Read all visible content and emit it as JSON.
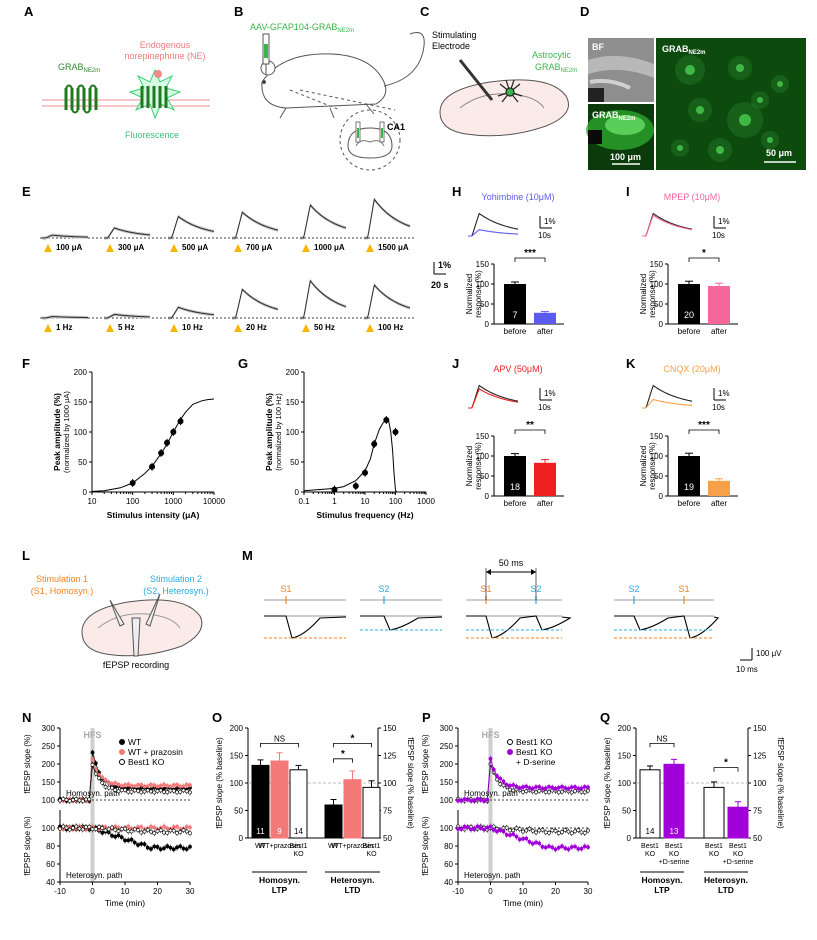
{
  "panel_labels": [
    "A",
    "B",
    "C",
    "D",
    "E",
    "F",
    "G",
    "H",
    "I",
    "J",
    "K",
    "L",
    "M",
    "N",
    "O",
    "P",
    "Q"
  ],
  "panelA": {
    "receptor_label": "GRAB",
    "receptor_sub": "NE2m",
    "ligand_label_1": "Endogenous",
    "ligand_label_2": "norepinephrine (NE)",
    "fluor_label": "Fluorescence"
  },
  "panelB": {
    "virus_label": "AAV-GFAP104-GRAB",
    "virus_sub": "NE2m",
    "region": "CA1"
  },
  "panelC": {
    "electrode_1": "Stimulating",
    "electrode_2": "Electrode",
    "astro_1": "Astrocytic",
    "astro_2": "GRAB",
    "astro_sub": "NE2m"
  },
  "panelD": {
    "bf": "BF",
    "grab": "GRAB",
    "grab_sub": "NE2m",
    "scale_left": "100 μm",
    "scale_right": "50 μm"
  },
  "panelE": {
    "intensity_labels": [
      "100 μA",
      "300 μA",
      "500 μA",
      "700 μA",
      "1000 μA",
      "1500 μA"
    ],
    "frequency_labels": [
      "1 Hz",
      "5 Hz",
      "10 Hz",
      "20 Hz",
      "50 Hz",
      "100 Hz"
    ],
    "intensity_peaks": [
      0.2,
      0.7,
      1.5,
      1.8,
      2.3,
      2.7
    ],
    "frequency_peaks": [
      0.1,
      0.25,
      0.75,
      2.0,
      2.6,
      2.3
    ],
    "scale_y": "1%",
    "scale_x": "20 s"
  },
  "chart_data": [
    {
      "panel": "F",
      "type": "line",
      "xscale": "log",
      "xlabel": "Stimulus intensity (μA)",
      "ylabel": "Peak amplitude (%)",
      "ylabel2": "(normalized by 1000 μA)",
      "xlim": [
        10,
        10000
      ],
      "ylim": [
        0,
        200
      ],
      "x_ticks": [
        "10",
        "100",
        "1000",
        "10000"
      ],
      "y_ticks": [
        "0",
        "50",
        "100",
        "150",
        "200"
      ],
      "points": {
        "x": [
          100,
          300,
          500,
          700,
          1000,
          1500
        ],
        "y": [
          15,
          42,
          65,
          82,
          100,
          118
        ]
      },
      "fit": {
        "x": [
          10,
          20,
          50,
          100,
          200,
          300,
          500,
          700,
          1000,
          1500,
          2000,
          3000,
          5000,
          7000,
          10000
        ],
        "y": [
          1,
          2,
          7,
          15,
          31,
          43,
          64,
          80,
          100,
          121,
          133,
          146,
          152,
          154,
          155
        ]
      }
    },
    {
      "panel": "G",
      "type": "line",
      "xscale": "log",
      "xlabel": "Stimulus frequency (Hz)",
      "ylabel": "Peak amplitude (%)",
      "ylabel2": "(normalized by 100 Hz)",
      "xlim": [
        0.1,
        1000
      ],
      "ylim": [
        0,
        200
      ],
      "x_ticks": [
        "0.1",
        "1",
        "10",
        "100",
        "1000"
      ],
      "y_ticks": [
        "0",
        "50",
        "100",
        "150",
        "200"
      ],
      "points": {
        "x": [
          1,
          5,
          10,
          20,
          50,
          100
        ],
        "y": [
          4,
          10,
          32,
          80,
          120,
          100
        ]
      },
      "fit": {
        "x": [
          0.1,
          0.3,
          1,
          2,
          5,
          10,
          15,
          20,
          30,
          40,
          50,
          60,
          70,
          80,
          90,
          100,
          110
        ],
        "y": [
          2,
          4,
          6,
          9,
          19,
          35,
          55,
          80,
          105,
          116,
          120,
          118,
          100,
          70,
          30,
          3,
          0
        ]
      }
    },
    {
      "panel": "H",
      "type": "bar",
      "drug": "Yohimbine (10μM)",
      "drug_color": "#5b5bef",
      "categories": [
        "before",
        "after"
      ],
      "values": [
        100,
        28
      ],
      "errors": [
        5,
        3
      ],
      "n": "7",
      "sig": "***",
      "ylabel": "Normalized response (%)",
      "ylim": [
        0,
        150
      ],
      "y_ticks": [
        "0",
        "50",
        "100",
        "150"
      ],
      "scale_y": "1%",
      "scale_x": "10s",
      "trace_ratio": 0.28
    },
    {
      "panel": "I",
      "type": "bar",
      "drug": "MPEP (10μM)",
      "drug_color": "#f5679a",
      "categories": [
        "before",
        "after"
      ],
      "values": [
        100,
        95
      ],
      "errors": [
        7,
        7
      ],
      "n": "20",
      "sig": "*",
      "ylabel": "Normalized response (%)",
      "ylim": [
        0,
        150
      ],
      "y_ticks": [
        "0",
        "50",
        "100",
        "150"
      ],
      "scale_y": "1%",
      "scale_x": "10s",
      "trace_ratio": 0.92
    },
    {
      "panel": "J",
      "type": "bar",
      "drug": "APV (50μM)",
      "drug_color": "#f02020",
      "categories": [
        "before",
        "after"
      ],
      "values": [
        100,
        83
      ],
      "errors": [
        6,
        8
      ],
      "n": "18",
      "sig": "**",
      "ylabel": "Normalized response (%)",
      "ylim": [
        0,
        150
      ],
      "y_ticks": [
        "0",
        "50",
        "100",
        "150"
      ],
      "scale_y": "1%",
      "scale_x": "10s",
      "trace_ratio": 0.85
    },
    {
      "panel": "K",
      "type": "bar",
      "drug": "CNQX (20μM)",
      "drug_color": "#f7a04a",
      "categories": [
        "before",
        "after"
      ],
      "values": [
        100,
        38
      ],
      "errors": [
        7,
        5
      ],
      "n": "19",
      "sig": "***",
      "ylabel": "Normalized response (%)",
      "ylim": [
        0,
        150
      ],
      "y_ticks": [
        "0",
        "50",
        "100",
        "150"
      ],
      "scale_y": "1%",
      "scale_x": "10s",
      "trace_ratio": 0.38
    },
    {
      "panel": "O",
      "type": "bar",
      "ylabel_left": "fEPSP slope (% baseline)",
      "ylabel_right": "fEPSP slope (% baseline)",
      "ylim_left": [
        0,
        200
      ],
      "ylim_right": [
        50,
        150
      ],
      "y_ticks_left": [
        "0",
        "50",
        "100",
        "150",
        "200"
      ],
      "y_ticks_right": [
        "50",
        "75",
        "100",
        "125",
        "150"
      ],
      "group_labels": [
        "Homosyn.",
        "LTP",
        "Heterosyn.",
        "LTD"
      ],
      "categories": [
        "WT",
        "WT+prazosin",
        "Best1 KO",
        "WT",
        "WT+prazosin",
        "Best1 KO"
      ],
      "values": [
        132,
        140,
        124,
        80,
        103,
        96
      ],
      "errors": [
        10,
        15,
        8,
        5,
        8,
        6
      ],
      "axis": [
        "left",
        "left",
        "left",
        "right",
        "right",
        "right"
      ],
      "colors": [
        "#000000",
        "#f47a7a",
        "#ffffff",
        "#000000",
        "#f47a7a",
        "#ffffff"
      ],
      "n": [
        "11",
        "9",
        "14",
        "",
        "",
        ""
      ],
      "sig_labels": [
        "NS",
        "*",
        "*"
      ]
    },
    {
      "panel": "Q",
      "type": "bar",
      "ylabel_left": "fEPSP slope (% baseline)",
      "ylabel_right": "fEPSP slope (% baseline)",
      "ylim_left": [
        0,
        200
      ],
      "ylim_right": [
        50,
        150
      ],
      "y_ticks_left": [
        "0",
        "50",
        "100",
        "150",
        "200"
      ],
      "y_ticks_right": [
        "50",
        "75",
        "100",
        "125",
        "150"
      ],
      "group_labels": [
        "Homosyn.",
        "LTP",
        "Heterosyn.",
        "LTD"
      ],
      "categories": [
        "Best1 KO",
        "Best1 KO +D-serine",
        "Best1 KO",
        "Best1 KO +D-serine"
      ],
      "values": [
        124,
        134,
        96,
        78
      ],
      "errors": [
        7,
        9,
        5,
        5
      ],
      "axis": [
        "left",
        "left",
        "right",
        "right"
      ],
      "colors": [
        "#ffffff",
        "#a200d8",
        "#ffffff",
        "#a200d8"
      ],
      "n": [
        "14",
        "13",
        "",
        ""
      ],
      "sig_labels": [
        "NS",
        "*"
      ]
    },
    {
      "panel": "N",
      "type": "line",
      "xlabel": "Time (min)",
      "x_ticks": [
        "-10",
        "0",
        "10",
        "20",
        "30"
      ],
      "xlim": [
        -10,
        30
      ],
      "hfs": "HFS",
      "legend": [
        "WT",
        "WT + prazosin",
        "Best1 KO"
      ],
      "top": {
        "ylabel": "fEPSP slope (%)",
        "ylim": [
          100,
          300
        ],
        "y_ticks": [
          "100",
          "150",
          "200",
          "250",
          "300"
        ],
        "path": "Homosyn. path"
      },
      "bottom": {
        "ylabel": "fEPSP slope (%)",
        "ylim": [
          40,
          120
        ],
        "y_ticks": [
          "40",
          "60",
          "80",
          "100"
        ],
        "path": "Heterosyn. path"
      }
    },
    {
      "panel": "P",
      "type": "line",
      "xlabel": "Time (min)",
      "x_ticks": [
        "-10",
        "0",
        "10",
        "20",
        "30"
      ],
      "xlim": [
        -10,
        30
      ],
      "hfs": "HFS",
      "legend": [
        "Best1 KO",
        "Best1 KO",
        "+ D-serine"
      ],
      "top": {
        "ylabel": "fEPSP slope (%)",
        "ylim": [
          100,
          300
        ],
        "y_ticks": [
          "100",
          "150",
          "200",
          "250",
          "300"
        ],
        "path": "Homosyn. path"
      },
      "bottom": {
        "ylabel": "fEPSP slope (%)",
        "ylim": [
          40,
          120
        ],
        "y_ticks": [
          "40",
          "60",
          "80",
          "100"
        ],
        "path": "Heterosyn. path"
      }
    }
  ],
  "panelL": {
    "s1_line1": "Stimulation 1",
    "s1_line2": "(S1, Homosyn.)",
    "s2_line1": "Stimulation 2",
    "s2_line2": "(S2, Heterosyn.)",
    "rec": "fEPSP recording"
  },
  "panelM": {
    "s1": "S1",
    "s2": "S2",
    "interval": "50 ms",
    "scale_y": "100 μV",
    "scale_x": "10 ms"
  },
  "colors": {
    "green": "#3ab54a",
    "grab_green": "#2e8b2e",
    "orange": "#f58220",
    "cyan": "#29abe2",
    "salmon": "#f47a7a",
    "purple": "#a200d8",
    "pink_label": "#f08080"
  }
}
